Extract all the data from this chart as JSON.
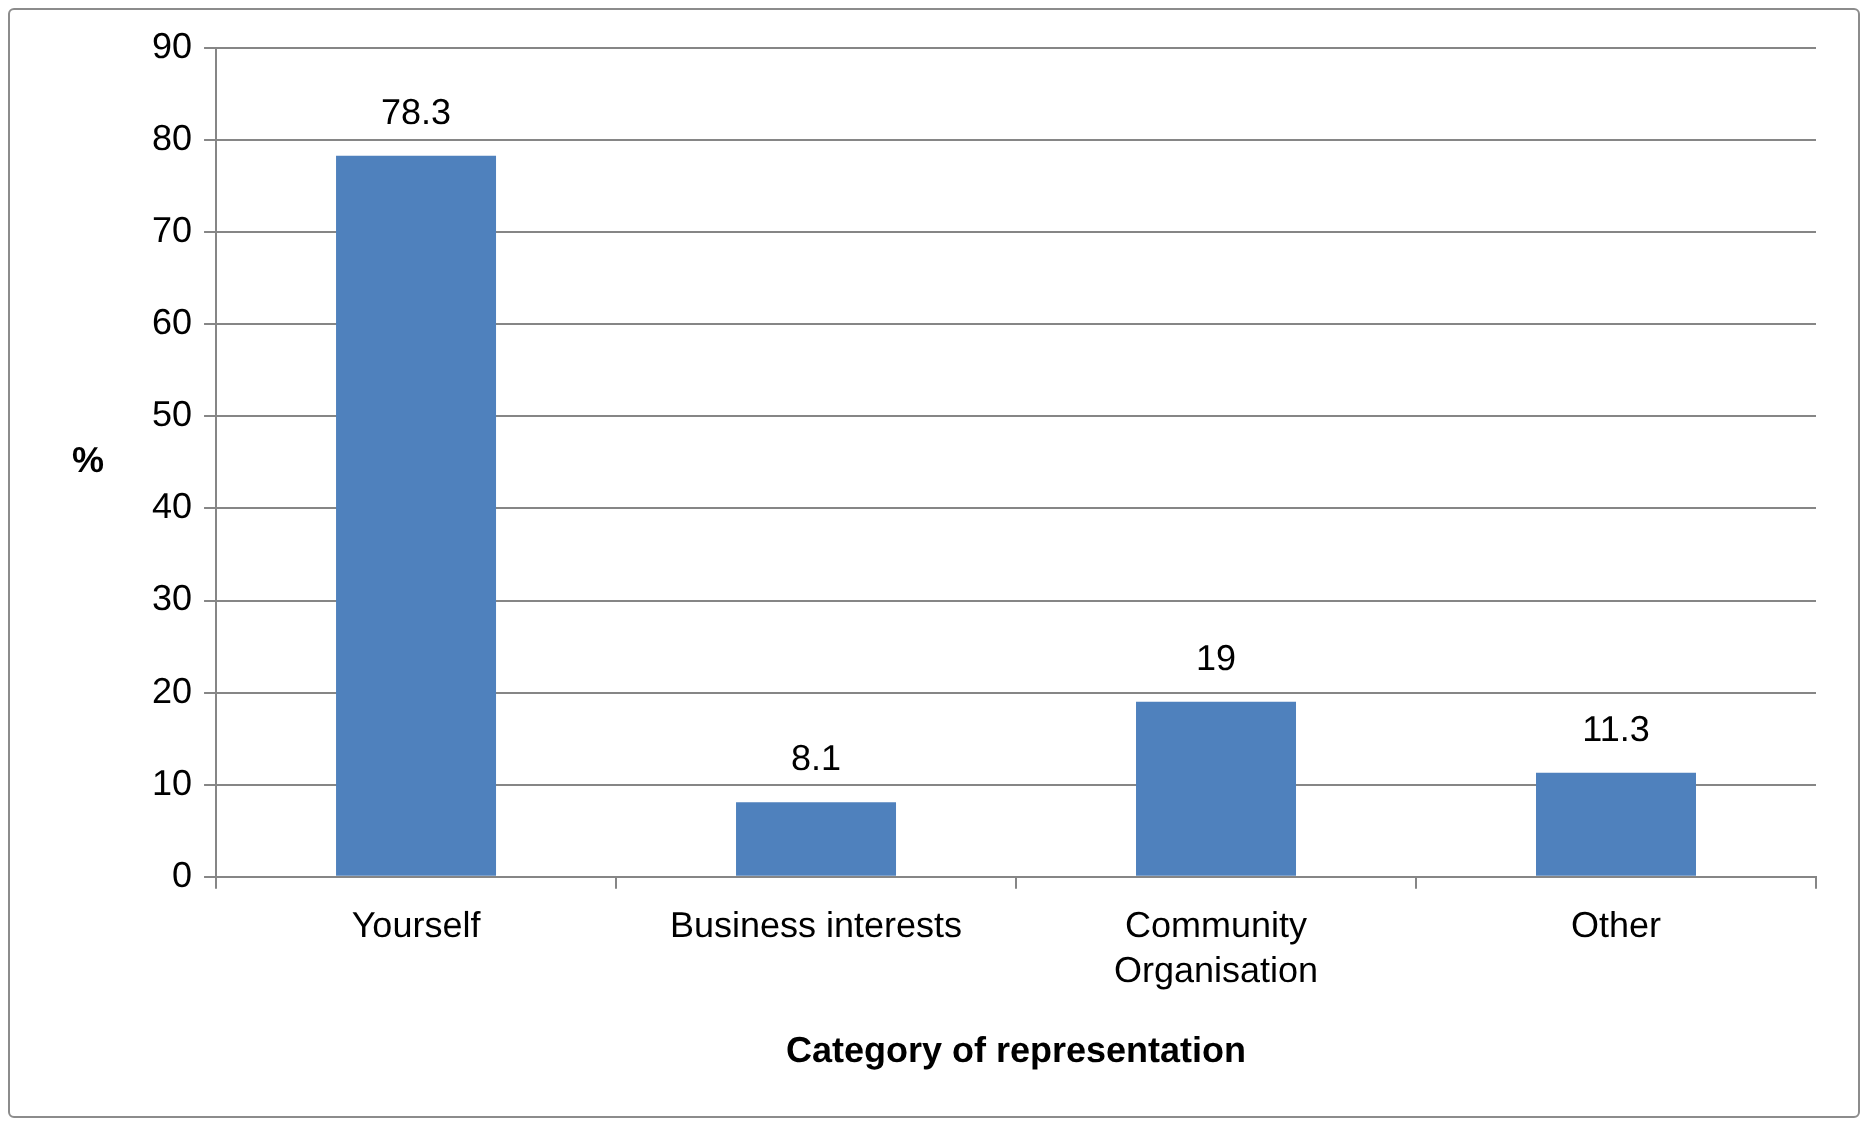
{
  "chart_data": {
    "type": "bar",
    "xlabel": "Category of representation",
    "ylabel": "%",
    "categories": [
      "Yourself",
      "Business interests",
      "Community Organisation",
      "Other"
    ],
    "values": [
      78.3,
      8.1,
      19,
      11.3
    ],
    "color": "#4f81bd",
    "ylim": [
      0,
      90
    ],
    "yticks": [
      0,
      10,
      20,
      30,
      40,
      50,
      60,
      70,
      80,
      90
    ],
    "grid": "y",
    "data_labels": true,
    "legend": false
  }
}
